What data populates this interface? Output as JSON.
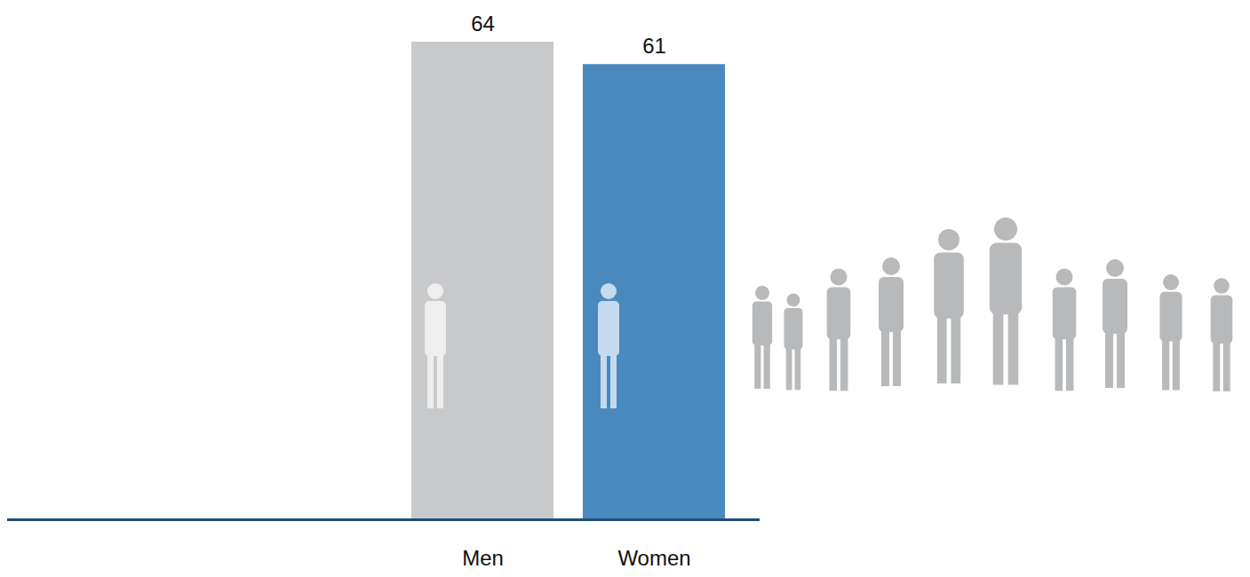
{
  "chart_data": {
    "type": "bar",
    "categories": [
      "Men",
      "Women"
    ],
    "values": [
      64,
      61
    ],
    "colors": [
      "#c8c9cb",
      "#4a89be"
    ],
    "ylim": [
      0,
      64
    ],
    "data_labels": true,
    "tick_labels": "x",
    "grid": false
  }
}
